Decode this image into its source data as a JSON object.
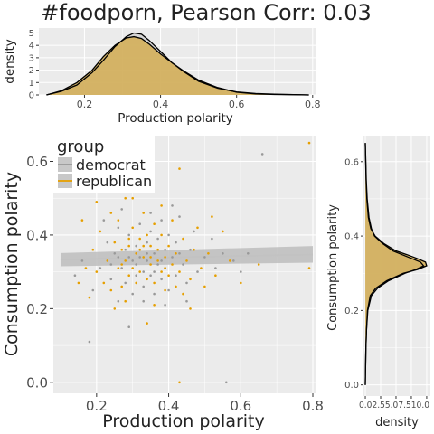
{
  "title": "#foodporn, Pearson Corr: 0.03",
  "colors": {
    "panel": "#ebebeb",
    "grid": "#ffffff",
    "democrat": "#999999",
    "republican": "#e69f00",
    "density_fill": "#d4ad52",
    "democrat_fill": "#c8c8c8",
    "ribbon": "#bdbdbd",
    "trend_line": "#c2c2c2"
  },
  "chart_data": [
    {
      "id": "top-density",
      "type": "area",
      "xlabel": "Production polarity",
      "ylabel": "density",
      "xlim": [
        0.08,
        0.81
      ],
      "ylim": [
        0,
        5.4
      ],
      "x_ticks": [
        0.2,
        0.4,
        0.6,
        0.8
      ],
      "x_tick_labels": [
        "0.2",
        "0.4",
        "0.6",
        "0.8"
      ],
      "y_ticks": [
        0,
        1,
        2,
        3,
        4,
        5
      ],
      "y_tick_labels": [
        "0",
        "1",
        "2",
        "3",
        "4",
        "5"
      ],
      "grid": true,
      "series": [
        {
          "group": "democrat",
          "x": [
            0.1,
            0.14,
            0.18,
            0.22,
            0.25,
            0.28,
            0.31,
            0.33,
            0.35,
            0.37,
            0.4,
            0.43,
            0.46,
            0.5,
            0.55,
            0.6,
            0.65,
            0.7,
            0.75,
            0.79
          ],
          "y": [
            0.0,
            0.3,
            0.8,
            1.8,
            2.8,
            3.9,
            4.7,
            5.0,
            4.9,
            4.4,
            3.5,
            2.6,
            1.9,
            1.1,
            0.55,
            0.25,
            0.12,
            0.06,
            0.03,
            0.0
          ]
        },
        {
          "group": "republican",
          "x": [
            0.1,
            0.14,
            0.18,
            0.22,
            0.25,
            0.28,
            0.31,
            0.33,
            0.35,
            0.37,
            0.4,
            0.43,
            0.46,
            0.5,
            0.55,
            0.6,
            0.65,
            0.7,
            0.75,
            0.79
          ],
          "y": [
            0.0,
            0.35,
            1.0,
            2.0,
            3.1,
            4.0,
            4.6,
            4.7,
            4.55,
            4.1,
            3.3,
            2.6,
            1.95,
            1.2,
            0.6,
            0.22,
            0.08,
            0.04,
            0.02,
            0.0
          ]
        }
      ]
    },
    {
      "id": "scatter",
      "type": "scatter",
      "xlabel": "Production polarity",
      "ylabel": "Consumption polarity",
      "xlim": [
        0.08,
        0.81
      ],
      "ylim": [
        -0.03,
        0.67
      ],
      "x_ticks": [
        0.2,
        0.4,
        0.6,
        0.8
      ],
      "x_tick_labels": [
        "0.2",
        "0.4",
        "0.6",
        "0.8"
      ],
      "y_ticks": [
        0.0,
        0.2,
        0.4,
        0.6
      ],
      "y_tick_labels": [
        "0.0",
        "0.2",
        "0.4",
        "0.6"
      ],
      "grid": true,
      "legend": {
        "position": "top-left",
        "title": "group",
        "entries": [
          "democrat",
          "republican"
        ]
      },
      "trend": {
        "x": [
          0.1,
          0.8
        ],
        "y": [
          0.333,
          0.347
        ],
        "ribbon_lo": [
          0.315,
          0.325
        ],
        "ribbon_hi": [
          0.351,
          0.37
        ]
      },
      "series": [
        {
          "group": "democrat",
          "points": [
            [
              0.66,
              0.62
            ],
            [
              0.18,
              0.11
            ],
            [
              0.56,
              0.0
            ],
            [
              0.29,
              0.15
            ],
            [
              0.14,
              0.29
            ],
            [
              0.16,
              0.33
            ],
            [
              0.19,
              0.25
            ],
            [
              0.21,
              0.31
            ],
            [
              0.23,
              0.38
            ],
            [
              0.24,
              0.28
            ],
            [
              0.25,
              0.35
            ],
            [
              0.26,
              0.22
            ],
            [
              0.26,
              0.42
            ],
            [
              0.27,
              0.31
            ],
            [
              0.28,
              0.36
            ],
            [
              0.28,
              0.27
            ],
            [
              0.29,
              0.4
            ],
            [
              0.3,
              0.33
            ],
            [
              0.3,
              0.24
            ],
            [
              0.31,
              0.37
            ],
            [
              0.31,
              0.29
            ],
            [
              0.32,
              0.43
            ],
            [
              0.32,
              0.34
            ],
            [
              0.33,
              0.3
            ],
            [
              0.33,
              0.26
            ],
            [
              0.34,
              0.38
            ],
            [
              0.34,
              0.33
            ],
            [
              0.35,
              0.41
            ],
            [
              0.35,
              0.29
            ],
            [
              0.36,
              0.35
            ],
            [
              0.36,
              0.24
            ],
            [
              0.37,
              0.39
            ],
            [
              0.37,
              0.32
            ],
            [
              0.38,
              0.44
            ],
            [
              0.38,
              0.28
            ],
            [
              0.39,
              0.36
            ],
            [
              0.39,
              0.31
            ],
            [
              0.4,
              0.4
            ],
            [
              0.4,
              0.25
            ],
            [
              0.41,
              0.34
            ],
            [
              0.42,
              0.29
            ],
            [
              0.42,
              0.38
            ],
            [
              0.43,
              0.45
            ],
            [
              0.44,
              0.32
            ],
            [
              0.45,
              0.27
            ],
            [
              0.46,
              0.36
            ],
            [
              0.47,
              0.41
            ],
            [
              0.48,
              0.3
            ],
            [
              0.5,
              0.34
            ],
            [
              0.52,
              0.39
            ],
            [
              0.53,
              0.31
            ],
            [
              0.55,
              0.35
            ],
            [
              0.58,
              0.33
            ],
            [
              0.6,
              0.3
            ],
            [
              0.62,
              0.35
            ],
            [
              0.22,
              0.44
            ],
            [
              0.27,
              0.47
            ],
            [
              0.35,
              0.46
            ],
            [
              0.41,
              0.48
            ],
            [
              0.33,
              0.22
            ],
            [
              0.39,
              0.21
            ],
            [
              0.45,
              0.22
            ],
            [
              0.24,
              0.32
            ],
            [
              0.29,
              0.34
            ],
            [
              0.36,
              0.3
            ],
            [
              0.43,
              0.35
            ],
            [
              0.31,
              0.32
            ],
            [
              0.26,
              0.34
            ],
            [
              0.38,
              0.33
            ],
            [
              0.34,
              0.35
            ]
          ]
        },
        {
          "group": "republican",
          "points": [
            [
              0.79,
              0.65
            ],
            [
              0.43,
              0.58
            ],
            [
              0.43,
              0.0
            ],
            [
              0.79,
              0.31
            ],
            [
              0.16,
              0.44
            ],
            [
              0.15,
              0.27
            ],
            [
              0.17,
              0.31
            ],
            [
              0.18,
              0.23
            ],
            [
              0.19,
              0.36
            ],
            [
              0.2,
              0.3
            ],
            [
              0.21,
              0.41
            ],
            [
              0.22,
              0.27
            ],
            [
              0.23,
              0.33
            ],
            [
              0.24,
              0.46
            ],
            [
              0.24,
              0.25
            ],
            [
              0.25,
              0.38
            ],
            [
              0.26,
              0.31
            ],
            [
              0.26,
              0.44
            ],
            [
              0.27,
              0.26
            ],
            [
              0.27,
              0.36
            ],
            [
              0.28,
              0.33
            ],
            [
              0.28,
              0.5
            ],
            [
              0.29,
              0.29
            ],
            [
              0.29,
              0.37
            ],
            [
              0.3,
              0.42
            ],
            [
              0.3,
              0.31
            ],
            [
              0.31,
              0.27
            ],
            [
              0.31,
              0.35
            ],
            [
              0.32,
              0.39
            ],
            [
              0.32,
              0.3
            ],
            [
              0.33,
              0.46
            ],
            [
              0.33,
              0.34
            ],
            [
              0.34,
              0.28
            ],
            [
              0.34,
              0.4
            ],
            [
              0.35,
              0.32
            ],
            [
              0.35,
              0.37
            ],
            [
              0.36,
              0.43
            ],
            [
              0.36,
              0.27
            ],
            [
              0.37,
              0.33
            ],
            [
              0.37,
              0.36
            ],
            [
              0.38,
              0.3
            ],
            [
              0.38,
              0.4
            ],
            [
              0.39,
              0.25
            ],
            [
              0.39,
              0.34
            ],
            [
              0.4,
              0.37
            ],
            [
              0.4,
              0.29
            ],
            [
              0.41,
              0.44
            ],
            [
              0.41,
              0.32
            ],
            [
              0.42,
              0.26
            ],
            [
              0.42,
              0.35
            ],
            [
              0.43,
              0.3
            ],
            [
              0.44,
              0.39
            ],
            [
              0.44,
              0.24
            ],
            [
              0.45,
              0.33
            ],
            [
              0.46,
              0.28
            ],
            [
              0.47,
              0.36
            ],
            [
              0.48,
              0.42
            ],
            [
              0.49,
              0.31
            ],
            [
              0.5,
              0.26
            ],
            [
              0.51,
              0.35
            ],
            [
              0.53,
              0.29
            ],
            [
              0.55,
              0.41
            ],
            [
              0.57,
              0.33
            ],
            [
              0.6,
              0.27
            ],
            [
              0.65,
              0.32
            ],
            [
              0.2,
              0.49
            ],
            [
              0.25,
              0.2
            ],
            [
              0.34,
              0.16
            ],
            [
              0.3,
              0.5
            ],
            [
              0.38,
              0.48
            ],
            [
              0.46,
              0.2
            ],
            [
              0.52,
              0.45
            ],
            [
              0.28,
              0.22
            ],
            [
              0.36,
              0.21
            ],
            [
              0.32,
              0.36
            ],
            [
              0.27,
              0.32
            ],
            [
              0.35,
              0.34
            ],
            [
              0.39,
              0.31
            ],
            [
              0.29,
              0.39
            ],
            [
              0.33,
              0.37
            ]
          ]
        }
      ]
    },
    {
      "id": "right-density",
      "type": "area",
      "orientation": "horizontal",
      "xlabel": "density",
      "ylabel": "Consumption polarity",
      "xlim": [
        -0.3,
        10.6
      ],
      "ylim": [
        -0.03,
        0.67
      ],
      "x_ticks": [
        0.0,
        2.5,
        5.0,
        7.5,
        10.0
      ],
      "x_tick_labels_text": "0.02.55.07.510.0",
      "y_ticks": [
        0.0,
        0.2,
        0.4,
        0.6
      ],
      "y_tick_labels": [
        "0.0",
        "0.2",
        "0.4",
        "0.6"
      ],
      "grid": true,
      "series": [
        {
          "group": "democrat",
          "y": [
            0.0,
            0.1,
            0.15,
            0.2,
            0.24,
            0.26,
            0.28,
            0.3,
            0.31,
            0.32,
            0.33,
            0.34,
            0.35,
            0.36,
            0.38,
            0.4,
            0.42,
            0.45,
            0.5,
            0.55,
            0.6,
            0.65
          ],
          "x": [
            0.0,
            0.1,
            0.2,
            0.4,
            1.0,
            2.0,
            3.8,
            6.5,
            8.2,
            9.5,
            9.0,
            7.5,
            6.0,
            4.5,
            2.8,
            1.5,
            1.0,
            0.6,
            0.3,
            0.15,
            0.08,
            0.0
          ]
        },
        {
          "group": "republican",
          "y": [
            0.0,
            0.1,
            0.15,
            0.2,
            0.24,
            0.26,
            0.28,
            0.3,
            0.31,
            0.32,
            0.33,
            0.34,
            0.35,
            0.36,
            0.38,
            0.4,
            0.42,
            0.45,
            0.5,
            0.55,
            0.6,
            0.65
          ],
          "x": [
            0.0,
            0.1,
            0.2,
            0.35,
            0.8,
            1.7,
            3.5,
            6.2,
            8.5,
            10.0,
            9.8,
            8.4,
            6.8,
            5.0,
            3.0,
            1.6,
            0.9,
            0.5,
            0.25,
            0.12,
            0.06,
            0.0
          ]
        }
      ]
    }
  ]
}
